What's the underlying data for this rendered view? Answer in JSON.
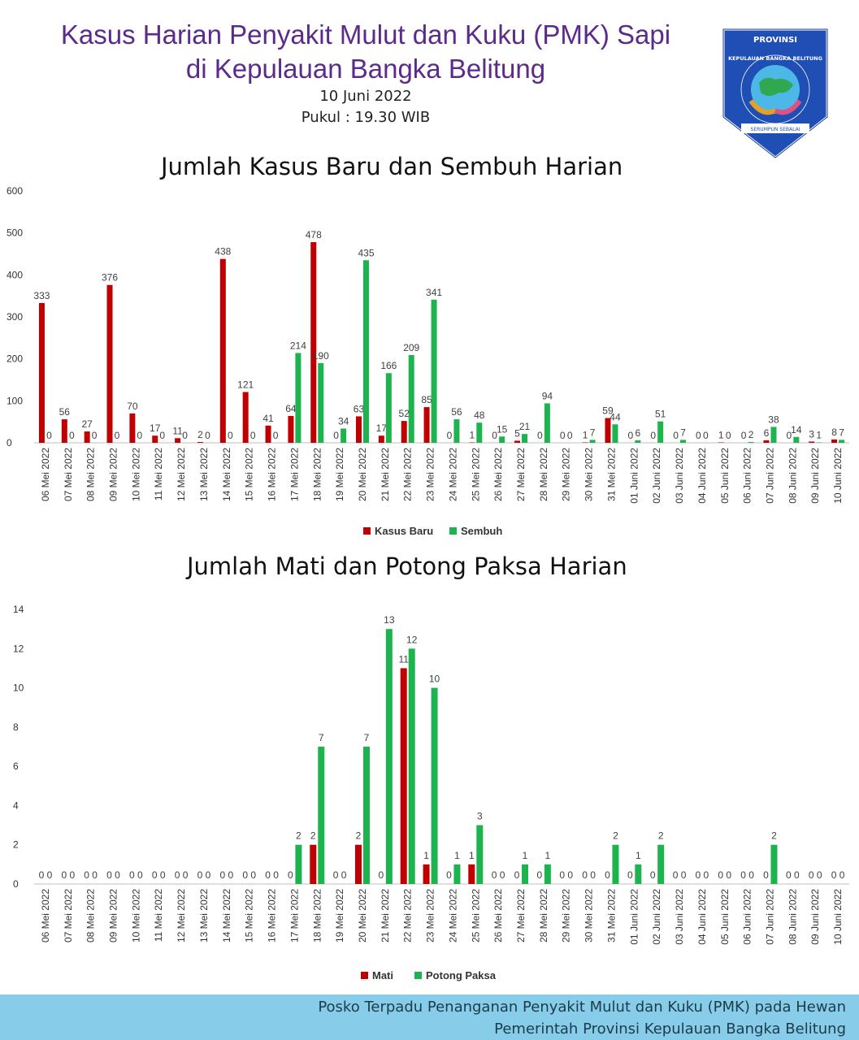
{
  "header": {
    "title_line1": "Kasus Harian Penyakit Mulut dan Kuku (PMK) Sapi",
    "title_line2": "di Kepulauan Bangka Belitung",
    "date": "10 Juni 2022",
    "time": "Pukul : 19.30 WIB"
  },
  "logo": {
    "top_text": "PROVINSI",
    "arc_text": "KEPULAUAN BANGKA BELITUNG",
    "motto": "SERUMPUN SEBALAI"
  },
  "colors": {
    "red": "#c00000",
    "green": "#1db450",
    "title_purple": "#5b2a8c",
    "footer_bg": "#87cdea"
  },
  "chart_data": [
    {
      "type": "bar",
      "title": "Jumlah Kasus Baru dan Sembuh Harian",
      "xlabel": "",
      "ylabel": "",
      "ylim": [
        0,
        600
      ],
      "yticks": [
        0,
        100,
        200,
        300,
        400,
        500,
        600
      ],
      "legend_position": "bottom",
      "categories": [
        "06 Mei 2022",
        "07 Mei 2022",
        "08 Mei 2022",
        "09 Mei 2022",
        "10 Mei 2022",
        "11 Mei 2022",
        "12 Mei 2022",
        "13 Mei 2022",
        "14 Mei 2022",
        "15 Mei 2022",
        "16 Mei 2022",
        "17 Mei 2022",
        "18 Mei 2022",
        "19 Mei 2022",
        "20 Mei 2022",
        "21 Mei 2022",
        "22 Mei 2022",
        "23 Mei 2022",
        "24 Mei 2022",
        "25 Mei 2022",
        "26 Mei 2022",
        "27 Mei 2022",
        "28 Mei 2022",
        "29 Mei 2022",
        "30 Mei 2022",
        "31 Mei 2022",
        "01 Juni 2022",
        "02 Juni 2022",
        "03 Juni 2022",
        "04 Juni 2022",
        "05 Juni 2022",
        "06 Juni 2022",
        "07 Juni 2022",
        "08 Juni 2022",
        "09 Juni 2022",
        "10 Juni 2022"
      ],
      "series": [
        {
          "name": "Kasus Baru",
          "color": "#c00000",
          "values": [
            333,
            56,
            27,
            376,
            70,
            17,
            11,
            2,
            438,
            121,
            41,
            64,
            478,
            0,
            63,
            17,
            52,
            85,
            0,
            1,
            0,
            5,
            0,
            0,
            1,
            59,
            0,
            0,
            0,
            0,
            1,
            0,
            6,
            0,
            3,
            8
          ]
        },
        {
          "name": "Sembuh",
          "color": "#1db450",
          "values": [
            0,
            0,
            0,
            0,
            0,
            0,
            0,
            0,
            0,
            0,
            0,
            214,
            190,
            34,
            435,
            166,
            209,
            341,
            56,
            48,
            15,
            21,
            94,
            0,
            7,
            44,
            6,
            51,
            7,
            0,
            0,
            2,
            38,
            14,
            1,
            7
          ]
        }
      ]
    },
    {
      "type": "bar",
      "title": "Jumlah Mati dan Potong Paksa Harian",
      "xlabel": "",
      "ylabel": "",
      "ylim": [
        0,
        14
      ],
      "yticks": [
        0,
        2,
        4,
        6,
        8,
        10,
        12,
        14
      ],
      "legend_position": "bottom",
      "categories": [
        "06 Mei 2022",
        "07 Mei 2022",
        "08 Mei 2022",
        "09 Mei 2022",
        "10 Mei 2022",
        "11 Mei 2022",
        "12 Mei 2022",
        "13 Mei 2022",
        "14 Mei 2022",
        "15 Mei 2022",
        "16 Mei 2022",
        "17 Mei 2022",
        "18 Mei 2022",
        "19 Mei 2022",
        "20 Mei 2022",
        "21 Mei 2022",
        "22 Mei 2022",
        "23 Mei 2022",
        "24 Mei 2022",
        "25 Mei 2022",
        "26 Mei 2022",
        "27 Mei 2022",
        "28 Mei 2022",
        "29 Mei 2022",
        "30 Mei 2022",
        "31 Mei 2022",
        "01 Juni 2022",
        "02 Juni 2022",
        "03 Juni 2022",
        "04 Juni 2022",
        "05 Juni 2022",
        "06 Juni 2022",
        "07 Juni 2022",
        "08 Juni 2022",
        "09 Juni 2022",
        "10 Juni 2022"
      ],
      "series": [
        {
          "name": "Mati",
          "color": "#c00000",
          "values": [
            0,
            0,
            0,
            0,
            0,
            0,
            0,
            0,
            0,
            0,
            0,
            0,
            2,
            0,
            2,
            0,
            11,
            1,
            0,
            1,
            0,
            0,
            0,
            0,
            0,
            0,
            0,
            0,
            0,
            0,
            0,
            0,
            0,
            0,
            0,
            0
          ]
        },
        {
          "name": "Potong Paksa",
          "color": "#1db450",
          "values": [
            0,
            0,
            0,
            0,
            0,
            0,
            0,
            0,
            0,
            0,
            0,
            2,
            7,
            0,
            7,
            13,
            12,
            10,
            1,
            3,
            0,
            1,
            1,
            0,
            0,
            2,
            1,
            2,
            0,
            0,
            0,
            0,
            2,
            0,
            0,
            0
          ]
        }
      ]
    }
  ],
  "footer": {
    "line1": "Posko Terpadu Penanganan Penyakit Mulut dan Kuku (PMK) pada Hewan",
    "line2": "Pemerintah Provinsi Kepulauan Bangka Belitung"
  }
}
